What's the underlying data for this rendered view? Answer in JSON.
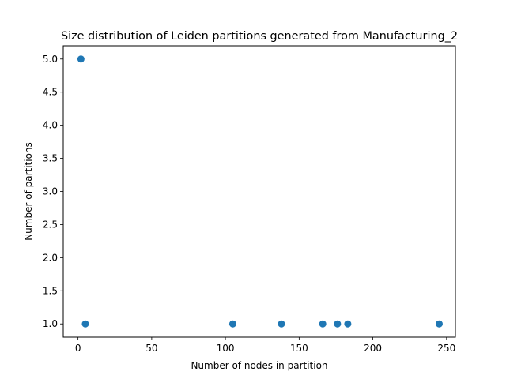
{
  "chart_data": {
    "type": "scatter",
    "title": "Size distribution of Leiden partitions generated from Manufacturing_2",
    "xlabel": "Number of nodes in partition",
    "ylabel": "Number of partitions",
    "xlim": [
      -10,
      256
    ],
    "ylim": [
      0.8,
      5.2
    ],
    "xticks": [
      0,
      50,
      100,
      150,
      200,
      250
    ],
    "yticks": [
      1.0,
      1.5,
      2.0,
      2.5,
      3.0,
      3.5,
      4.0,
      4.5,
      5.0
    ],
    "xtick_labels": [
      "0",
      "50",
      "100",
      "150",
      "200",
      "250"
    ],
    "ytick_labels": [
      "1.0",
      "1.5",
      "2.0",
      "2.5",
      "3.0",
      "3.5",
      "4.0",
      "4.5",
      "5.0"
    ],
    "grid": false,
    "legend": "none",
    "color": "#1f77b4",
    "points": [
      {
        "x": 2,
        "y": 5
      },
      {
        "x": 5,
        "y": 1
      },
      {
        "x": 105,
        "y": 1
      },
      {
        "x": 138,
        "y": 1
      },
      {
        "x": 166,
        "y": 1
      },
      {
        "x": 176,
        "y": 1
      },
      {
        "x": 183,
        "y": 1
      },
      {
        "x": 245,
        "y": 1
      }
    ]
  }
}
